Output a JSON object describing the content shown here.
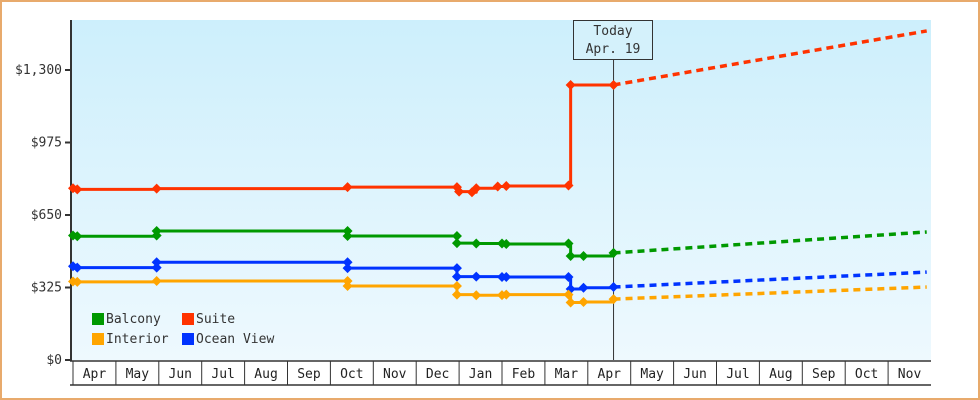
{
  "chart_data": {
    "type": "line",
    "title": "",
    "xlabel": "",
    "ylabel": "",
    "ylim": [
      0,
      1525
    ],
    "yticks": [
      {
        "value": 0,
        "label": "$0"
      },
      {
        "value": 325,
        "label": "$325"
      },
      {
        "value": 650,
        "label": "$650"
      },
      {
        "value": 975,
        "label": "$975"
      },
      {
        "value": 1300,
        "label": "$1,300"
      }
    ],
    "x_months": [
      "Apr",
      "May",
      "Jun",
      "Jul",
      "Aug",
      "Sep",
      "Oct",
      "Nov",
      "Dec",
      "Jan",
      "Feb",
      "Mar",
      "Apr",
      "May",
      "Jun",
      "Jul",
      "Aug",
      "Sep",
      "Oct",
      "Nov"
    ],
    "today_marker": {
      "line1": "Today",
      "line2": "Apr. 19",
      "x_month_index": 12.6
    },
    "legend_position": "bottom-left inside plot",
    "grid": false,
    "series": [
      {
        "name": "Suite",
        "color": "#ff3300",
        "points": [
          [
            0.0,
            770
          ],
          [
            0.1,
            765
          ],
          [
            1.95,
            768
          ],
          [
            6.4,
            775
          ],
          [
            8.95,
            775
          ],
          [
            9.0,
            755
          ],
          [
            9.3,
            752
          ],
          [
            9.4,
            770
          ],
          [
            9.9,
            778
          ],
          [
            10.1,
            780
          ],
          [
            11.55,
            782
          ],
          [
            11.6,
            1233
          ],
          [
            12.6,
            1233
          ]
        ],
        "forecast": [
          [
            12.6,
            1233
          ],
          [
            19.9,
            1475
          ]
        ]
      },
      {
        "name": "Balcony",
        "color": "#009900",
        "points": [
          [
            0.0,
            558
          ],
          [
            0.1,
            555
          ],
          [
            1.95,
            558
          ],
          [
            1.95,
            578
          ],
          [
            6.4,
            578
          ],
          [
            6.4,
            556
          ],
          [
            8.95,
            556
          ],
          [
            8.95,
            524
          ],
          [
            9.4,
            522
          ],
          [
            10.0,
            522
          ],
          [
            10.1,
            520
          ],
          [
            11.55,
            522
          ],
          [
            11.6,
            466
          ],
          [
            11.9,
            466
          ],
          [
            12.6,
            480
          ]
        ],
        "forecast": [
          [
            12.6,
            480
          ],
          [
            19.9,
            574
          ]
        ]
      },
      {
        "name": "Ocean View",
        "color": "#0033ff",
        "points": [
          [
            0.0,
            420
          ],
          [
            0.1,
            414
          ],
          [
            1.95,
            414
          ],
          [
            1.95,
            438
          ],
          [
            6.4,
            438
          ],
          [
            6.4,
            412
          ],
          [
            8.95,
            412
          ],
          [
            8.95,
            374
          ],
          [
            9.4,
            374
          ],
          [
            10.0,
            372
          ],
          [
            10.1,
            372
          ],
          [
            11.55,
            372
          ],
          [
            11.6,
            318
          ],
          [
            11.9,
            324
          ],
          [
            12.6,
            327
          ]
        ],
        "forecast": [
          [
            12.6,
            327
          ],
          [
            19.9,
            394
          ]
        ]
      },
      {
        "name": "Interior",
        "color": "#ffa500",
        "points": [
          [
            0.0,
            352
          ],
          [
            0.1,
            350
          ],
          [
            1.95,
            354
          ],
          [
            6.4,
            354
          ],
          [
            6.4,
            332
          ],
          [
            8.95,
            332
          ],
          [
            8.95,
            293
          ],
          [
            9.4,
            290
          ],
          [
            10.0,
            291
          ],
          [
            10.1,
            293
          ],
          [
            11.55,
            293
          ],
          [
            11.6,
            258
          ],
          [
            11.9,
            260
          ],
          [
            12.6,
            273
          ]
        ],
        "forecast": [
          [
            12.6,
            273
          ],
          [
            19.9,
            327
          ]
        ]
      }
    ]
  },
  "legend": [
    {
      "label": "Balcony",
      "color": "#009900"
    },
    {
      "label": "Suite",
      "color": "#ff3300"
    },
    {
      "label": "Interior",
      "color": "#ffa500"
    },
    {
      "label": "Ocean View",
      "color": "#0033ff"
    }
  ],
  "today": {
    "line1": "Today",
    "line2": "Apr. 19"
  }
}
